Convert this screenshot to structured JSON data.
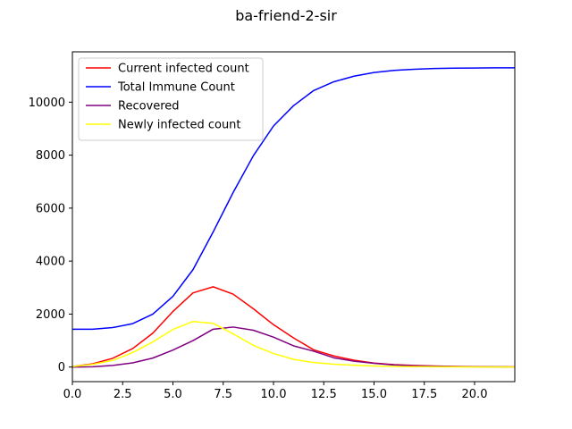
{
  "chart_data": {
    "type": "line",
    "title": "ba-friend-2-sir",
    "xlabel": "",
    "ylabel": "",
    "xlim": [
      0,
      22
    ],
    "ylim": [
      -550,
      11900
    ],
    "x_ticks": [
      0.0,
      2.5,
      5.0,
      7.5,
      10.0,
      12.5,
      15.0,
      17.5,
      20.0
    ],
    "x_tick_labels": [
      "0.0",
      "2.5",
      "5.0",
      "7.5",
      "10.0",
      "12.5",
      "15.0",
      "17.5",
      "20.0"
    ],
    "y_ticks": [
      0,
      2000,
      4000,
      6000,
      8000,
      10000
    ],
    "y_tick_labels": [
      "0",
      "2000",
      "4000",
      "6000",
      "8000",
      "10000"
    ],
    "grid": false,
    "legend_position": "top-left",
    "x": [
      0,
      1,
      2,
      3,
      4,
      5,
      6,
      7,
      8,
      9,
      10,
      11,
      12,
      13,
      14,
      15,
      16,
      17,
      18,
      19,
      20,
      21,
      22
    ],
    "series": [
      {
        "name": "Current infected count",
        "color": "#ff0000",
        "values": [
          20,
          120,
          330,
          700,
          1280,
          2100,
          2800,
          3030,
          2750,
          2200,
          1600,
          1100,
          650,
          420,
          260,
          150,
          90,
          60,
          40,
          25,
          15,
          10,
          8
        ]
      },
      {
        "name": "Total Immune Count",
        "color": "#0000ff",
        "values": [
          1430,
          1430,
          1490,
          1640,
          2000,
          2670,
          3680,
          5100,
          6600,
          7980,
          9100,
          9870,
          10440,
          10770,
          10980,
          11120,
          11200,
          11240,
          11270,
          11285,
          11290,
          11295,
          11298
        ]
      },
      {
        "name": "Recovered",
        "color": "#800080",
        "values": [
          0,
          10,
          60,
          160,
          340,
          640,
          1000,
          1430,
          1510,
          1390,
          1130,
          800,
          600,
          350,
          220,
          140,
          80,
          50,
          30,
          20,
          10,
          5,
          2
        ]
      },
      {
        "name": "Newly infected count",
        "color": "#ffff00",
        "values": [
          20,
          100,
          250,
          550,
          950,
          1420,
          1720,
          1650,
          1250,
          820,
          510,
          290,
          170,
          110,
          70,
          40,
          25,
          15,
          10,
          5,
          3,
          2,
          1
        ]
      }
    ]
  }
}
